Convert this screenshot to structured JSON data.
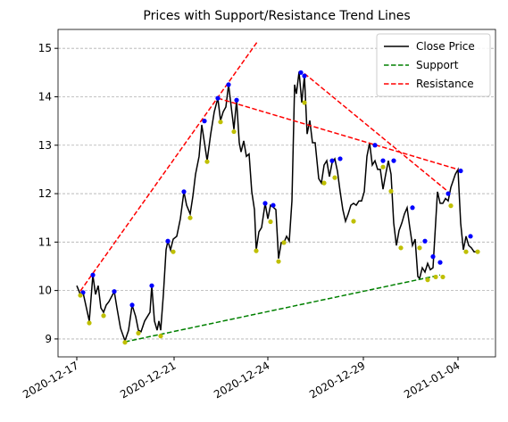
{
  "chart_data": {
    "type": "line",
    "title": "Prices with Support/Resistance Trend Lines",
    "xlim": [
      -21,
      469
    ],
    "ylim": [
      8.63,
      15.39
    ],
    "xticks": [
      {
        "value": 0,
        "label": "2020-12-17"
      },
      {
        "value": 109,
        "label": "2020-12-21"
      },
      {
        "value": 214,
        "label": "2020-12-24"
      },
      {
        "value": 321,
        "label": "2020-12-29"
      },
      {
        "value": 427,
        "label": "2021-01-04"
      }
    ],
    "yticks": [
      9,
      10,
      11,
      12,
      13,
      14,
      15
    ],
    "grid": "y",
    "legend": "upper right",
    "series": [
      {
        "name": "Close Price",
        "color": "#000000",
        "linestyle": "solid",
        "x": [
          0,
          4,
          7,
          14,
          18,
          21,
          24,
          27,
          30,
          33,
          36,
          42,
          45,
          49,
          54,
          58,
          62,
          66,
          69,
          72,
          76,
          79,
          82,
          84,
          87,
          90,
          92,
          94,
          97,
          100,
          102,
          105,
          108,
          112,
          116,
          120,
          123,
          127,
          130,
          133,
          137,
          140,
          143,
          146,
          150,
          154,
          158,
          161,
          164,
          167,
          170,
          173,
          176,
          179,
          182,
          184,
          187,
          190,
          193,
          196,
          199,
          201,
          204,
          207,
          211,
          214,
          217,
          220,
          223,
          226,
          229,
          232,
          235,
          238,
          241,
          244,
          246,
          249,
          252,
          255,
          258,
          261,
          264,
          267,
          271,
          274,
          277,
          280,
          283,
          286,
          289,
          292,
          295,
          298,
          301,
          304,
          307,
          310,
          313,
          316,
          319,
          322,
          325,
          328,
          331,
          334,
          337,
          340,
          343,
          346,
          349,
          352,
          355,
          358,
          361,
          364,
          367,
          370,
          373,
          376,
          379,
          382,
          384,
          387,
          390,
          393,
          396,
          399,
          404,
          407,
          410,
          413,
          416,
          419,
          424,
          427,
          430,
          433,
          436,
          439,
          442,
          445,
          449
        ],
        "values": [
          10.1,
          9.92,
          9.96,
          9.37,
          10.32,
          9.92,
          10.1,
          9.64,
          9.55,
          9.7,
          9.77,
          9.98,
          9.64,
          9.22,
          8.96,
          9.18,
          9.7,
          9.46,
          9.18,
          9.15,
          9.37,
          9.46,
          9.55,
          10.1,
          9.37,
          9.18,
          9.37,
          9.18,
          9.92,
          10.84,
          11.02,
          10.84,
          11.06,
          11.12,
          11.48,
          12.04,
          11.76,
          11.58,
          11.94,
          12.4,
          12.77,
          13.42,
          13.05,
          12.68,
          13.23,
          13.69,
          13.97,
          13.51,
          13.69,
          13.79,
          14.25,
          13.79,
          13.33,
          13.93,
          13.05,
          12.86,
          13.09,
          12.77,
          12.82,
          12.04,
          11.67,
          10.84,
          11.21,
          11.3,
          11.8,
          11.48,
          11.76,
          11.72,
          11.67,
          10.66,
          10.99,
          10.99,
          11.12,
          11.02,
          11.85,
          14.25,
          14.06,
          14.52,
          13.88,
          14.43,
          13.23,
          13.51,
          13.05,
          13.05,
          12.31,
          12.22,
          12.59,
          12.68,
          12.35,
          12.64,
          12.72,
          12.46,
          12.04,
          11.67,
          11.43,
          11.58,
          11.76,
          11.8,
          11.76,
          11.85,
          11.85,
          12.04,
          12.77,
          13.05,
          12.59,
          12.68,
          12.5,
          12.5,
          12.09,
          12.4,
          12.68,
          12.4,
          11.39,
          10.93,
          11.24,
          11.39,
          11.58,
          11.71,
          11.3,
          10.93,
          11.06,
          10.29,
          10.25,
          10.47,
          10.38,
          10.56,
          10.43,
          10.47,
          12.04,
          11.8,
          11.8,
          11.9,
          11.85,
          12.13,
          12.4,
          12.5,
          11.39,
          10.84,
          11.12,
          10.93,
          10.88,
          10.8,
          10.8
        ]
      },
      {
        "name": "Support",
        "color": "#008000",
        "linestyle": "dashed",
        "x": [
          54,
          407
        ],
        "values": [
          8.94,
          10.32
        ]
      },
      {
        "name": "Resistance",
        "color": "#ff0000",
        "linestyle": "dashed",
        "x": [
          4,
          202,
          null,
          158,
          427,
          null,
          255,
          416
        ],
        "values": [
          9.99,
          15.13,
          null,
          13.97,
          12.5,
          null,
          14.48,
          12.04
        ]
      }
    ],
    "peaks": {
      "color": "#0000ff",
      "x": [
        7,
        18,
        42,
        62,
        84,
        102,
        120,
        143,
        158,
        170,
        179,
        211,
        220,
        251,
        255,
        286,
        295,
        334,
        343,
        355,
        376,
        390,
        399,
        407,
        416,
        430,
        441
      ],
      "values": [
        9.96,
        10.32,
        9.98,
        9.7,
        10.1,
        11.02,
        12.04,
        13.5,
        13.97,
        14.25,
        13.93,
        11.8,
        11.76,
        14.5,
        14.43,
        12.68,
        12.72,
        13.0,
        12.68,
        12.68,
        11.71,
        11.02,
        10.7,
        10.58,
        12.0,
        12.47,
        11.12
      ]
    },
    "troughs": {
      "color": "#bfbf00",
      "x": [
        4,
        14,
        30,
        54,
        69,
        94,
        108,
        127,
        146,
        161,
        176,
        201,
        217,
        226,
        232,
        255,
        277,
        289,
        310,
        343,
        352,
        363,
        384,
        393,
        402,
        410,
        419,
        436,
        449
      ],
      "values": [
        9.9,
        9.33,
        9.48,
        8.93,
        9.12,
        9.06,
        10.8,
        11.5,
        12.66,
        13.48,
        13.28,
        10.82,
        11.42,
        10.6,
        10.99,
        13.88,
        12.22,
        12.33,
        11.43,
        12.55,
        12.05,
        10.88,
        10.88,
        10.22,
        10.28,
        10.28,
        11.75,
        10.8,
        10.8
      ]
    }
  }
}
